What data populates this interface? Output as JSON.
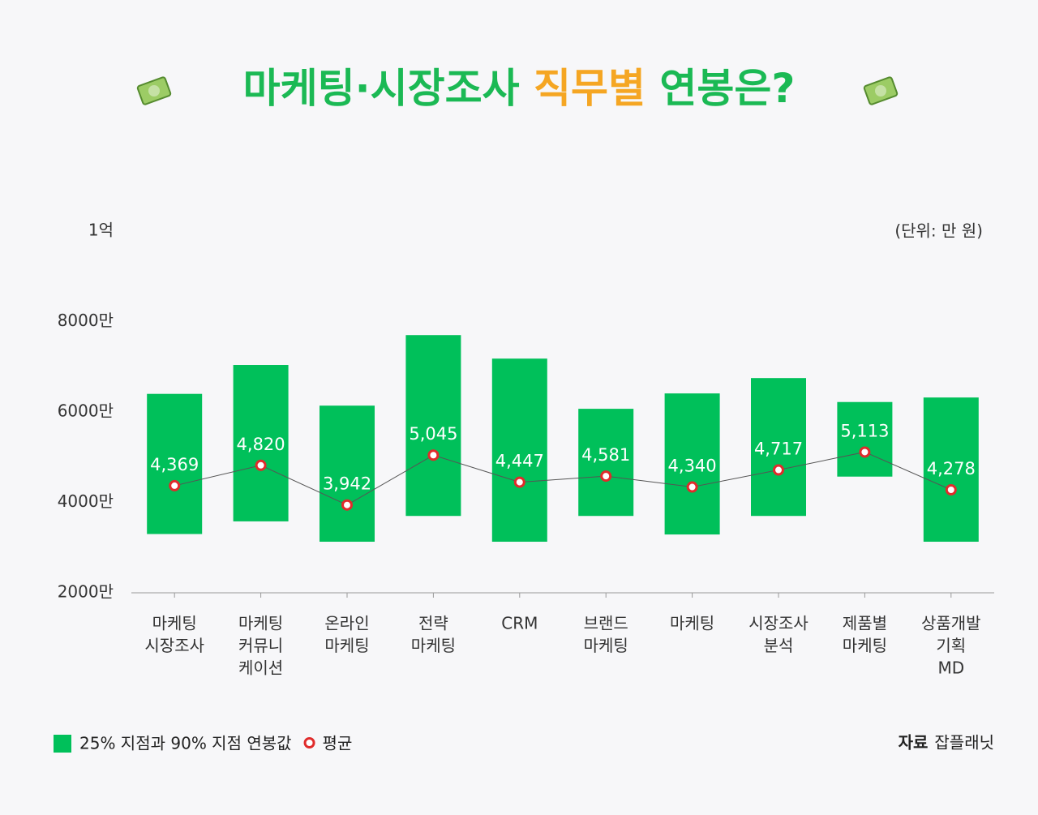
{
  "chart_data": {
    "type": "range-bar",
    "title_parts": [
      "마케팅·시장조사",
      "직무별",
      "연봉은?"
    ],
    "title_colors": [
      "#1bb954",
      "#f5a623",
      "#1bb954"
    ],
    "unit_note": "(단위: 만 원)",
    "categories": [
      [
        "마케팅",
        "시장조사"
      ],
      [
        "마케팅",
        "커뮤니",
        "케이션"
      ],
      [
        "온라인",
        "마케팅"
      ],
      [
        "전략",
        "마케팅"
      ],
      [
        "CRM"
      ],
      [
        "브랜드",
        "마케팅"
      ],
      [
        "마케팅"
      ],
      [
        "시장조사",
        "분석"
      ],
      [
        "제품별",
        "마케팅"
      ],
      [
        "상품개발",
        "기획",
        "MD"
      ]
    ],
    "series": [
      {
        "name": "25% 지점과 90% 지점 연봉값",
        "color": "#00c05a",
        "low": [
          3300,
          3580,
          3130,
          3700,
          3130,
          3700,
          3290,
          3700,
          4570,
          3130
        ],
        "high": [
          6400,
          7040,
          6140,
          7700,
          7180,
          6070,
          6410,
          6750,
          6220,
          6320
        ]
      },
      {
        "name": "평균",
        "color": "#e02b2b",
        "values": [
          4369,
          4820,
          3942,
          5045,
          4447,
          4581,
          4340,
          4717,
          5113,
          4278
        ],
        "value_labels": [
          "4,369",
          "4,820",
          "3,942",
          "5,045",
          "4,447",
          "4,581",
          "4,340",
          "4,717",
          "5,113",
          "4,278"
        ]
      }
    ],
    "ylim": [
      2000,
      10000
    ],
    "yticks": [
      {
        "value": 2000,
        "label": "2000만"
      },
      {
        "value": 4000,
        "label": "4000만"
      },
      {
        "value": 6000,
        "label": "6000만"
      },
      {
        "value": 8000,
        "label": "8000만"
      },
      {
        "value": 10000,
        "label": "1억"
      }
    ],
    "source_label": "자료",
    "source": "잡플래닛"
  }
}
